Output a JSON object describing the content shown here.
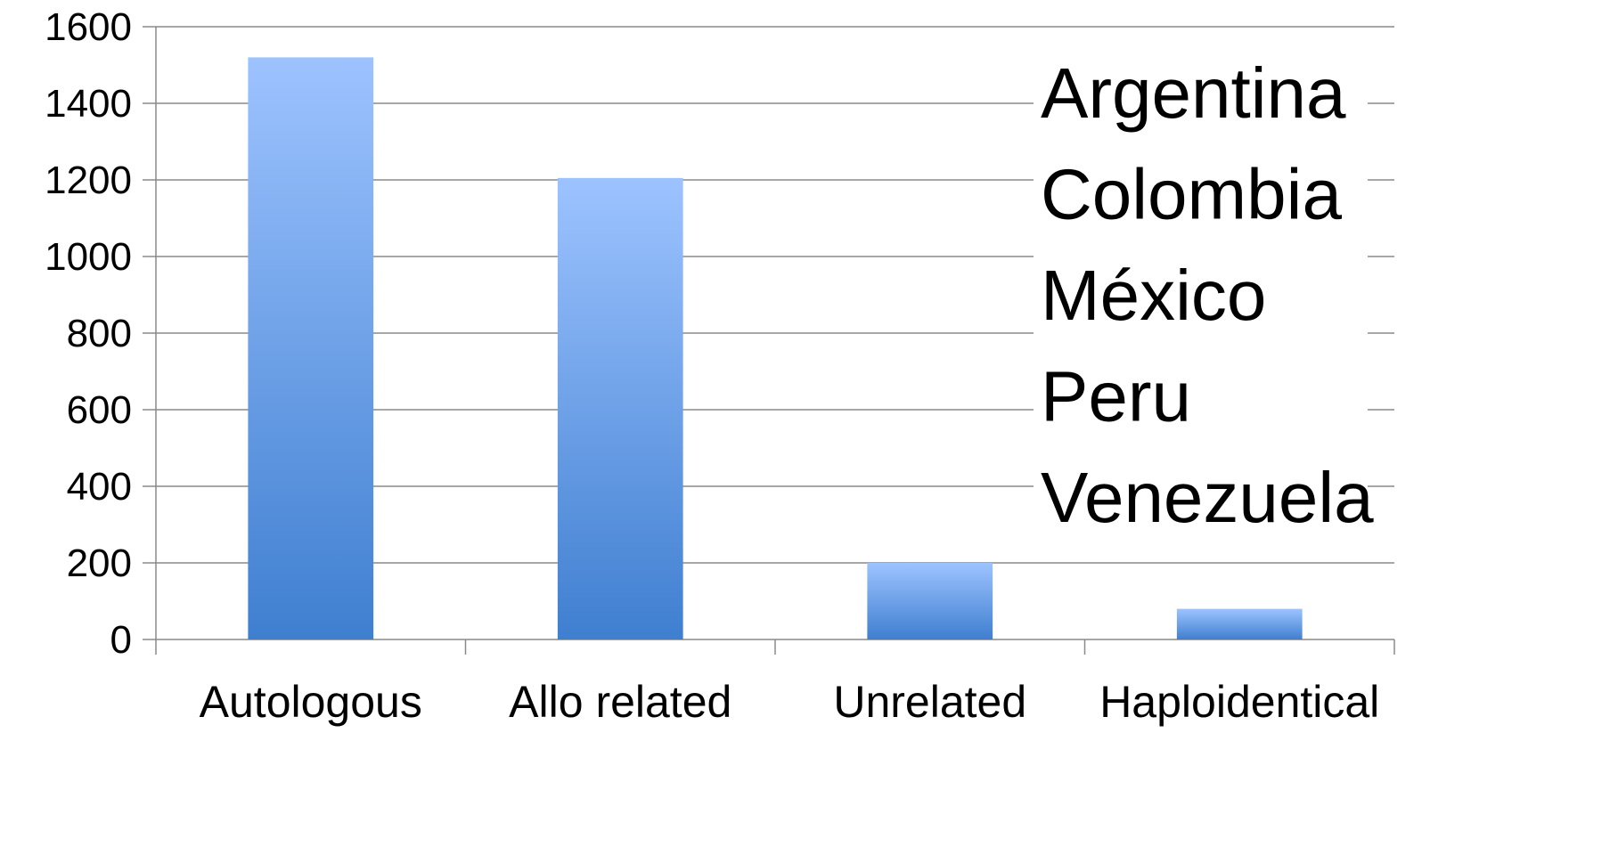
{
  "chart_data": {
    "type": "bar",
    "categories": [
      "Autologous",
      "Allo related",
      "Unrelated",
      "Haploidentical"
    ],
    "values": [
      1520,
      1205,
      200,
      80
    ],
    "ylim": [
      0,
      1600
    ],
    "y_ticks": [
      "0",
      "200",
      "400",
      "600",
      "800",
      "1000",
      "1200",
      "1400",
      "1600"
    ],
    "y_tick_values": [
      0,
      200,
      400,
      600,
      800,
      1000,
      1200,
      1400,
      1600
    ],
    "grid": true,
    "legend": "none",
    "bar_color_top": "#9DC3FF",
    "bar_color_bottom": "#3F7FD0",
    "annotation": {
      "placement": "top-right",
      "lines": [
        "Argentina",
        "Colombia",
        "México",
        "Peru",
        "Venezuela"
      ]
    }
  }
}
